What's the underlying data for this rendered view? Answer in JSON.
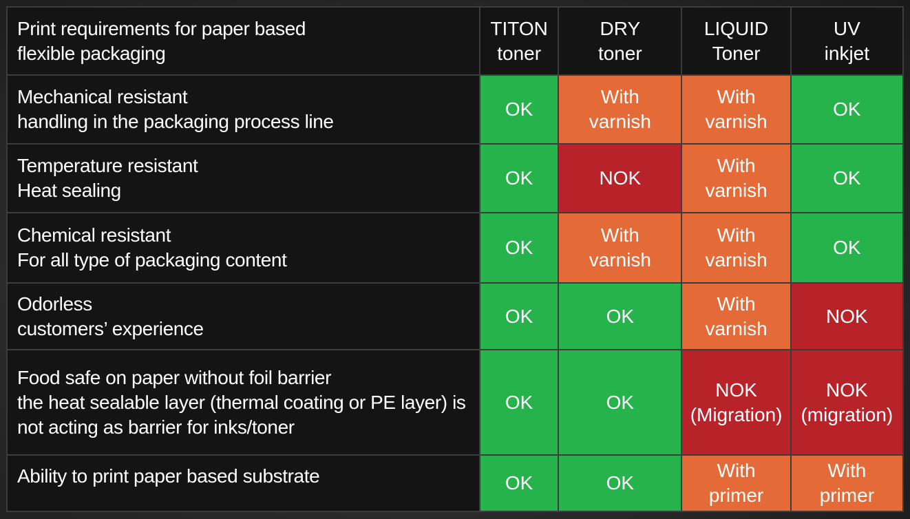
{
  "colors": {
    "ok": "#26b34b",
    "with_varnish": "#e46a38",
    "nok": "#b8232a",
    "header_bg": "#141414"
  },
  "table": {
    "header": {
      "requirement": [
        "Print requirements for paper based",
        "flexible packaging"
      ],
      "columns": [
        [
          "TITON",
          "toner"
        ],
        [
          "DRY",
          "toner"
        ],
        [
          "LIQUID",
          "Toner"
        ],
        [
          "UV",
          "inkjet"
        ]
      ]
    },
    "rows": [
      {
        "requirement": [
          "Mechanical resistant",
          "handling in the packaging process line"
        ],
        "cells": [
          {
            "status": "ok",
            "text": [
              "OK"
            ]
          },
          {
            "status": "with_varnish",
            "text": [
              "With",
              "varnish"
            ]
          },
          {
            "status": "with_varnish",
            "text": [
              "With",
              "varnish"
            ]
          },
          {
            "status": "ok",
            "text": [
              "OK"
            ]
          }
        ]
      },
      {
        "requirement": [
          "Temperature resistant",
          "Heat sealing"
        ],
        "cells": [
          {
            "status": "ok",
            "text": [
              "OK"
            ]
          },
          {
            "status": "nok",
            "text": [
              "NOK"
            ]
          },
          {
            "status": "with_varnish",
            "text": [
              "With",
              "varnish"
            ]
          },
          {
            "status": "ok",
            "text": [
              "OK"
            ]
          }
        ]
      },
      {
        "requirement": [
          "Chemical resistant",
          "For all type of packaging content"
        ],
        "cells": [
          {
            "status": "ok",
            "text": [
              "OK"
            ]
          },
          {
            "status": "with_varnish",
            "text": [
              "With",
              "varnish"
            ]
          },
          {
            "status": "with_varnish",
            "text": [
              "With",
              "varnish"
            ]
          },
          {
            "status": "ok",
            "text": [
              "OK"
            ]
          }
        ]
      },
      {
        "requirement": [
          "Odorless",
          "customers’ experience"
        ],
        "cells": [
          {
            "status": "ok",
            "text": [
              "OK"
            ]
          },
          {
            "status": "ok",
            "text": [
              "OK"
            ]
          },
          {
            "status": "with_varnish",
            "text": [
              "With",
              "varnish"
            ]
          },
          {
            "status": "nok",
            "text": [
              "NOK"
            ]
          }
        ]
      },
      {
        "requirement": [
          "Food safe on paper without foil barrier",
          "the heat sealable layer (thermal coating or PE layer) is",
          "not acting as barrier for inks/toner"
        ],
        "cells": [
          {
            "status": "ok",
            "text": [
              "OK"
            ]
          },
          {
            "status": "ok",
            "text": [
              "OK"
            ]
          },
          {
            "status": "nok",
            "text": [
              "NOK",
              "(Migration)"
            ]
          },
          {
            "status": "nok",
            "text": [
              "NOK",
              "(migration)"
            ]
          }
        ]
      },
      {
        "requirement": [
          "Ability to print paper based substrate"
        ],
        "cells": [
          {
            "status": "ok",
            "text": [
              "OK"
            ]
          },
          {
            "status": "ok",
            "text": [
              "OK"
            ]
          },
          {
            "status": "with_varnish",
            "text": [
              "With",
              "primer"
            ]
          },
          {
            "status": "with_varnish",
            "text": [
              "With",
              "primer"
            ]
          }
        ]
      }
    ]
  }
}
